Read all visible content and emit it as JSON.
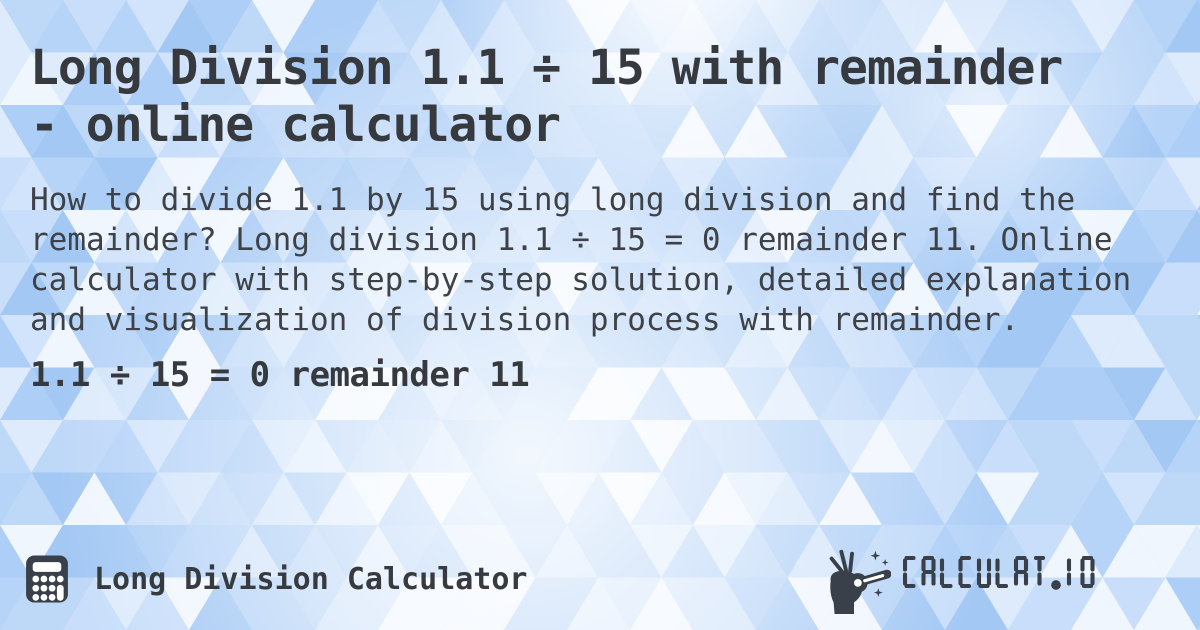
{
  "header": {
    "title": "Long Division 1.1 ÷ 15 with remainder\n- online calculator"
  },
  "description": "How to divide 1.1 by 15 using long division and find the\nremainder? Long division 1.1 ÷ 15 = 0 remainder 11. Online\ncalculator with step-by-step solution, detailed explanation\nand visualization of division process with remainder.",
  "result": "1.1 ÷ 15 = 0 remainder 11",
  "footer": {
    "app_label": "Long Division Calculator",
    "brand": "CALCULAT.IO"
  },
  "icons": {
    "calculator": "calculator-icon",
    "magic_wand": "magic-wand-hand-icon"
  },
  "colors": {
    "ink": "#36393d",
    "body_ink": "#3e4247",
    "icon_ink": "#394049",
    "background_base": "#b6d3f7",
    "pattern_palette": [
      "#9fc6f3",
      "#abcdf5",
      "#abcdf5",
      "#b6d3f7",
      "#b6d3f7",
      "#c1daf8",
      "#c1daf8",
      "#cde1fa",
      "#d9e9fb",
      "#e7f1fd",
      "#ffffff"
    ]
  }
}
